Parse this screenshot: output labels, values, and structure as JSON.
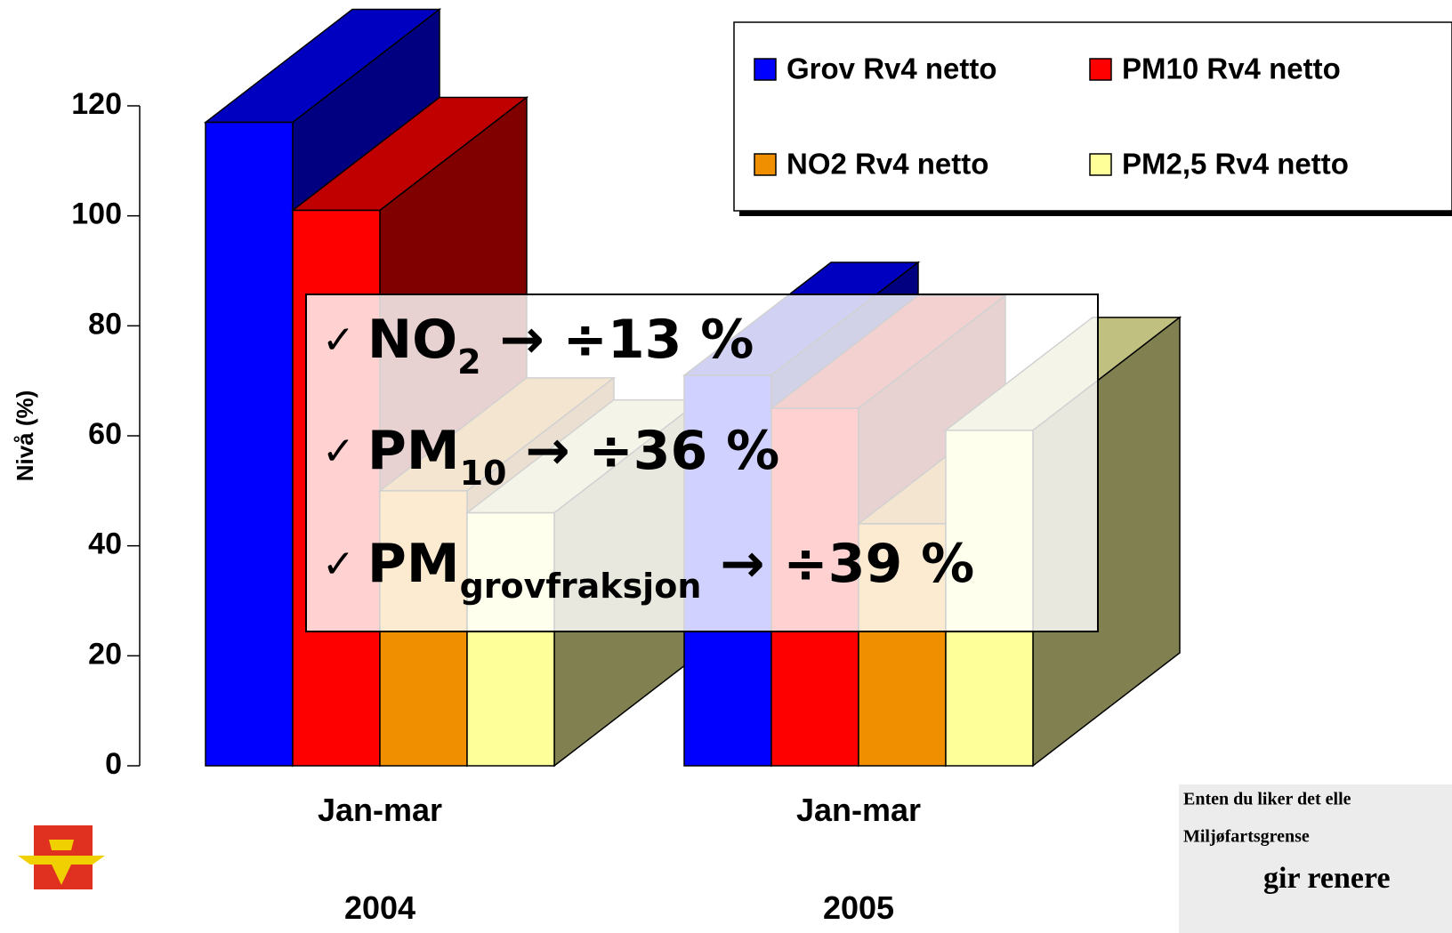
{
  "chart_data": {
    "type": "bar3d",
    "y_label": "Nivå (%)",
    "categories": [
      "Jan-mar\n2004",
      "Jan-mar\n2005"
    ],
    "series": [
      {
        "name": "Grov Rv4 netto",
        "color": "#0000ff",
        "top": "#0000c0",
        "side": "#000080",
        "values": [
          117,
          71
        ]
      },
      {
        "name": "PM10 Rv4 netto",
        "color": "#ff0000",
        "top": "#c00000",
        "side": "#800000",
        "values": [
          101,
          65
        ]
      },
      {
        "name": "NO2 Rv4 netto",
        "color": "#f09000",
        "top": "#c07000",
        "side": "#905000",
        "values": [
          50,
          44
        ]
      },
      {
        "name": "PM2,5 Rv4 netto",
        "color": "#ffff99",
        "top": "#c0c080",
        "side": "#808050",
        "values": [
          46,
          61
        ]
      }
    ],
    "ylim": [
      0,
      120
    ],
    "yticks": [
      0,
      20,
      40,
      60,
      80,
      100,
      120
    ],
    "annotations": [
      {
        "marker": "✓",
        "text": "NO",
        "sub": "2",
        "rest": " →  ÷13 %"
      },
      {
        "marker": "✓",
        "text": "PM",
        "sub": "10",
        "rest": " → ÷36 %"
      },
      {
        "marker": "✓",
        "text": "PM",
        "sub": "grovfraksjon",
        "rest": " → ÷39 %"
      }
    ],
    "inset_text": [
      "Enten du liker det elle",
      "Miljøfartsgrense",
      "gir renere"
    ]
  }
}
